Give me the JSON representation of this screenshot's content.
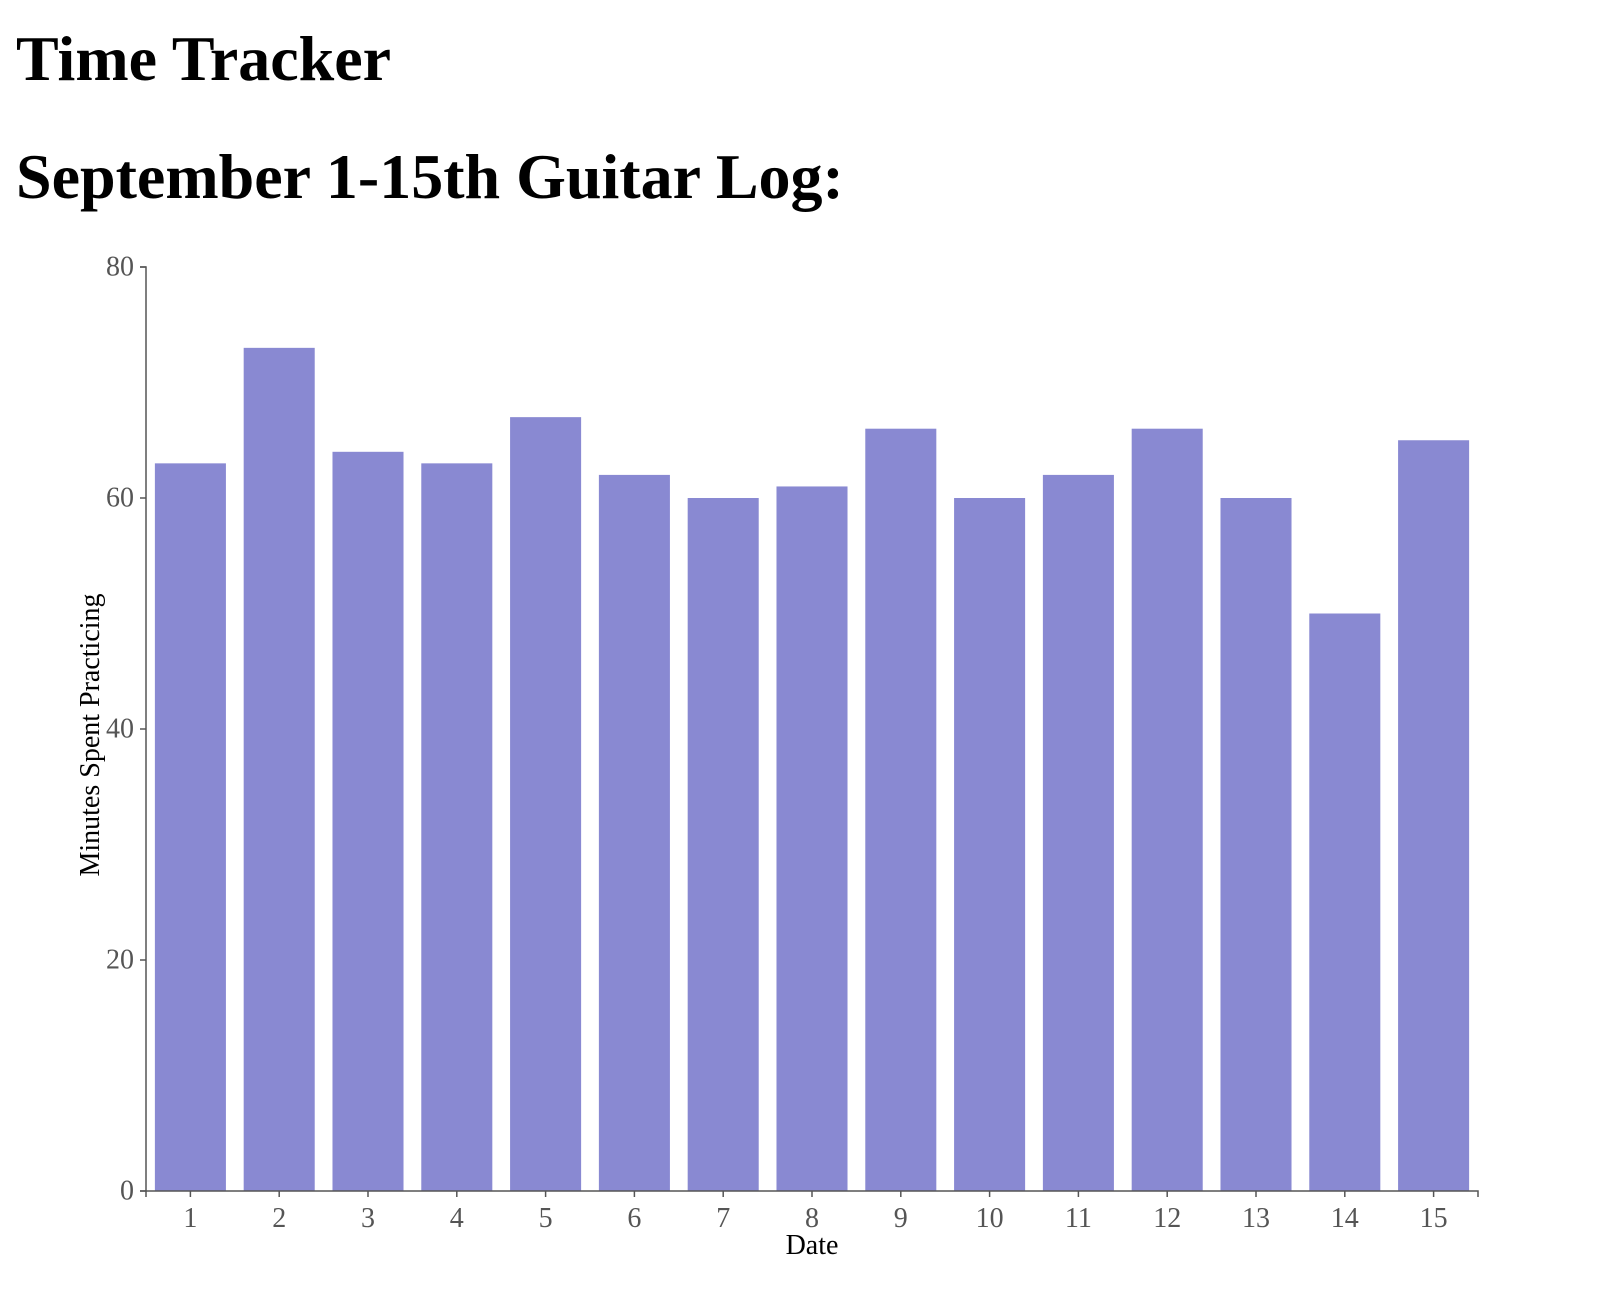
{
  "page": {
    "title": "Time Tracker"
  },
  "chart_data": {
    "type": "bar",
    "title": "September 1-15th Guitar Log:",
    "xlabel": "Date",
    "ylabel": "Minutes Spent Practicing",
    "categories": [
      "1",
      "2",
      "3",
      "4",
      "5",
      "6",
      "7",
      "8",
      "9",
      "10",
      "11",
      "12",
      "13",
      "14",
      "15"
    ],
    "values": [
      63,
      73,
      64,
      63,
      67,
      62,
      60,
      61,
      66,
      60,
      62,
      66,
      60,
      50,
      65
    ],
    "ylim": [
      0,
      80
    ],
    "yticks": [
      0,
      20,
      40,
      60,
      80
    ],
    "grid": false,
    "bar_color": "#8989d2",
    "axis_color": "#555555"
  }
}
